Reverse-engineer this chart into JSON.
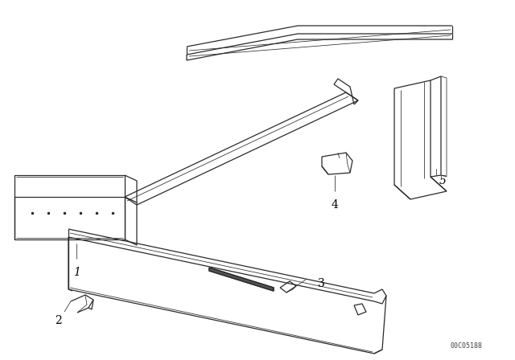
{
  "background_color": "#ffffff",
  "line_color": "#2a2a2a",
  "label_color": "#000000",
  "catalog_number": "00C05188",
  "lw_main": 0.9,
  "lw_thin": 0.55,
  "lw_thick": 1.1
}
